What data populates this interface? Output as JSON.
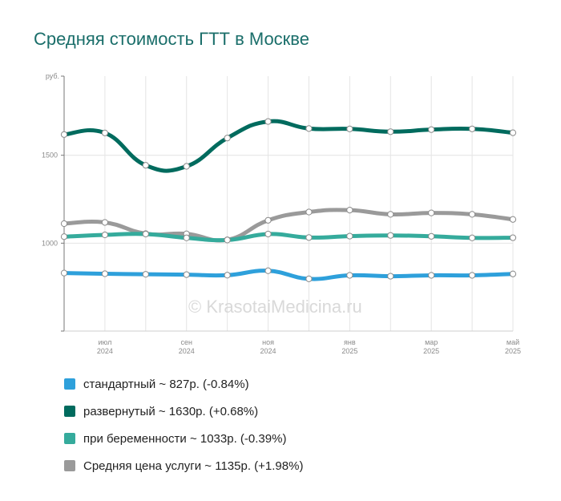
{
  "chart_data": {
    "type": "line",
    "title": "Средняя стоимость ГТТ в Москве",
    "yunit": "руб.",
    "ylim": [
      500,
      1950
    ],
    "yticks": [
      1000,
      1500
    ],
    "grid": true,
    "x_ticks": [
      {
        "month": "июл",
        "year": "2024",
        "index": 1
      },
      {
        "month": "сен",
        "year": "2024",
        "index": 3
      },
      {
        "month": "ноя",
        "year": "2024",
        "index": 5
      },
      {
        "month": "янв",
        "year": "2025",
        "index": 7
      },
      {
        "month": "мар",
        "year": "2025",
        "index": 9
      },
      {
        "month": "май",
        "year": "2025",
        "index": 11
      }
    ],
    "x": [
      "2024-06",
      "2024-07",
      "2024-08",
      "2024-09",
      "2024-10",
      "2024-11",
      "2024-12",
      "2025-01",
      "2025-02",
      "2025-03",
      "2025-04",
      "2025-05"
    ],
    "series": [
      {
        "name": "стандартный",
        "color": "#2ea0db",
        "values": [
          830,
          826,
          823,
          821,
          818,
          843,
          797,
          817,
          812,
          817,
          817,
          825
        ]
      },
      {
        "name": "развернутый",
        "color": "#006b5e",
        "values": [
          1618,
          1627,
          1443,
          1437,
          1598,
          1692,
          1652,
          1650,
          1634,
          1646,
          1650,
          1628
        ]
      },
      {
        "name": "при беременности",
        "color": "#35ab9c",
        "values": [
          1037,
          1047,
          1052,
          1030,
          1018,
          1052,
          1032,
          1040,
          1044,
          1039,
          1030,
          1031
        ]
      },
      {
        "name": "Средняя цена услуги",
        "color": "#9a9a9a",
        "values": [
          1111,
          1118,
          1054,
          1053,
          1019,
          1130,
          1177,
          1188,
          1164,
          1172,
          1164,
          1135
        ]
      }
    ]
  },
  "legend": [
    {
      "label": "стандартный ~ 827р. (-0.84%)",
      "color": "#2ea0db"
    },
    {
      "label": "развернутый ~ 1630р. (+0.68%)",
      "color": "#006b5e"
    },
    {
      "label": "при беременности ~ 1033р. (-0.39%)",
      "color": "#35ab9c"
    },
    {
      "label": "Средняя цена услуги ~ 1135р. (+1.98%)",
      "color": "#9a9a9a"
    }
  ],
  "watermark": "© KrasotaiMedicina.ru"
}
